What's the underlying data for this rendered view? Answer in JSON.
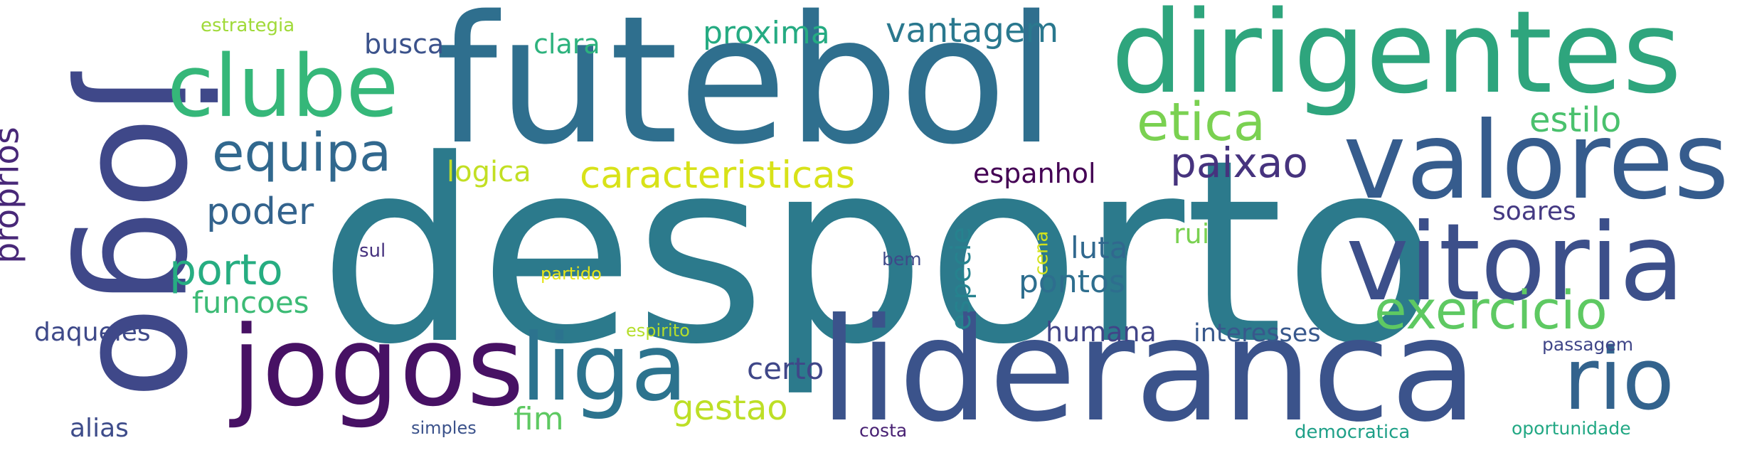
{
  "words": [
    {
      "text": "desporto",
      "color": "#2c7a8c"
    },
    {
      "text": "futebol",
      "color": "#2f6f8e"
    },
    {
      "text": "lideranca",
      "color": "#3b538b"
    },
    {
      "text": "dirigentes",
      "color": "#2ea57d"
    },
    {
      "text": "jogo",
      "color": "#3f4889"
    },
    {
      "text": "valores",
      "color": "#365c8d"
    },
    {
      "text": "vitoria",
      "color": "#3c4f8a"
    },
    {
      "text": "jogos",
      "color": "#471164"
    },
    {
      "text": "clube",
      "color": "#35b779"
    },
    {
      "text": "liga",
      "color": "#2c738e"
    },
    {
      "text": "rio",
      "color": "#33638d"
    },
    {
      "text": "exercicio",
      "color": "#5ec962"
    },
    {
      "text": "etica",
      "color": "#7ad151"
    },
    {
      "text": "equipa",
      "color": "#31688e"
    },
    {
      "text": "paixao",
      "color": "#46337e"
    },
    {
      "text": "caracteristicas",
      "color": "#d8e219"
    },
    {
      "text": "porto",
      "color": "#26ad81"
    },
    {
      "text": "proprios",
      "color": "#482878"
    },
    {
      "text": "vantagem",
      "color": "#2a788e"
    },
    {
      "text": "poder",
      "color": "#33638d"
    },
    {
      "text": "estilo",
      "color": "#4ac16d"
    },
    {
      "text": "proxima",
      "color": "#25ab82"
    },
    {
      "text": "gestao",
      "color": "#bddf26"
    },
    {
      "text": "funcoes",
      "color": "#3cbb75"
    },
    {
      "text": "fim",
      "color": "#5ec962"
    },
    {
      "text": "certo",
      "color": "#3f4788"
    },
    {
      "text": "humana",
      "color": "#414487"
    },
    {
      "text": "pontos",
      "color": "#2e6e8e"
    },
    {
      "text": "luta",
      "color": "#31688e"
    },
    {
      "text": "logica",
      "color": "#c2df23"
    },
    {
      "text": "espanhol",
      "color": "#440154"
    },
    {
      "text": "busca",
      "color": "#3b528b"
    },
    {
      "text": "clara",
      "color": "#2db27d"
    },
    {
      "text": "interesses",
      "color": "#38588c"
    },
    {
      "text": "daqueles",
      "color": "#3e4989"
    },
    {
      "text": "especie",
      "color": "#26828e"
    },
    {
      "text": "soares",
      "color": "#443983"
    },
    {
      "text": "rui",
      "color": "#7ad151"
    },
    {
      "text": "alias",
      "color": "#3e4c8a"
    },
    {
      "text": "estrategia",
      "color": "#a0da39"
    },
    {
      "text": "sul",
      "color": "#46327e"
    },
    {
      "text": "bem",
      "color": "#3e4989"
    },
    {
      "text": "cena",
      "color": "#d2e21b"
    },
    {
      "text": "partido",
      "color": "#e5e419"
    },
    {
      "text": "espirito",
      "color": "#b5de2b"
    },
    {
      "text": "simples",
      "color": "#3b528b"
    },
    {
      "text": "costa",
      "color": "#482173"
    },
    {
      "text": "passagem",
      "color": "#404688"
    },
    {
      "text": "democratica",
      "color": "#1fa088"
    },
    {
      "text": "oportunidade",
      "color": "#22a884"
    }
  ]
}
